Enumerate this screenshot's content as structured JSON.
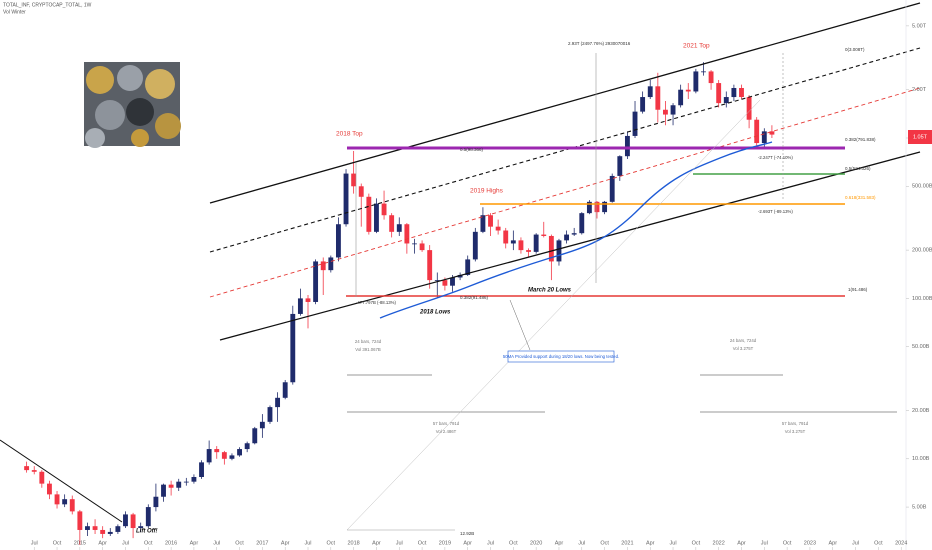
{
  "chart_data": {
    "type": "candlestick",
    "header": [
      "TOTAL_INF, CRYPTOCAP_TOTAL, 1W",
      "Vol Winter"
    ],
    "log_scale": true,
    "up_color": "#1f2b6b",
    "down_color": "#f23645",
    "xlim": [
      "2014-03",
      "2024-02"
    ],
    "ylim": [
      2.7,
      7250
    ],
    "yticks": [
      {
        "value": 5,
        "label": "5.00B"
      },
      {
        "value": 10,
        "label": "10.00B"
      },
      {
        "value": 20,
        "label": "20.00B"
      },
      {
        "value": 50,
        "label": "50.00B"
      },
      {
        "value": 100,
        "label": "100.00B"
      },
      {
        "value": 200,
        "label": "200.00B"
      },
      {
        "value": 500,
        "label": "500.00B"
      },
      {
        "value": 1000,
        "label": "1.00T"
      },
      {
        "value": 2000,
        "label": "2.00T"
      },
      {
        "value": 5000,
        "label": "5.00T"
      }
    ],
    "xticks": [
      {
        "value": "2014-07",
        "label": "Jul"
      },
      {
        "value": "2014-10",
        "label": "Oct"
      },
      {
        "value": "2015-01",
        "label": "2015"
      },
      {
        "value": "2015-04",
        "label": "Apr"
      },
      {
        "value": "2015-07",
        "label": "Jul"
      },
      {
        "value": "2015-10",
        "label": "Oct"
      },
      {
        "value": "2016-01",
        "label": "2016"
      },
      {
        "value": "2016-04",
        "label": "Apr"
      },
      {
        "value": "2016-07",
        "label": "Jul"
      },
      {
        "value": "2016-10",
        "label": "Oct"
      },
      {
        "value": "2017-01",
        "label": "2017"
      },
      {
        "value": "2017-04",
        "label": "Apr"
      },
      {
        "value": "2017-07",
        "label": "Jul"
      },
      {
        "value": "2017-10",
        "label": "Oct"
      },
      {
        "value": "2018-01",
        "label": "2018"
      },
      {
        "value": "2018-04",
        "label": "Apr"
      },
      {
        "value": "2018-07",
        "label": "Jul"
      },
      {
        "value": "2018-10",
        "label": "Oct"
      },
      {
        "value": "2019-01",
        "label": "2019"
      },
      {
        "value": "2019-04",
        "label": "Apr"
      },
      {
        "value": "2019-07",
        "label": "Jul"
      },
      {
        "value": "2019-10",
        "label": "Oct"
      },
      {
        "value": "2020-01",
        "label": "2020"
      },
      {
        "value": "2020-04",
        "label": "Apr"
      },
      {
        "value": "2020-07",
        "label": "Jul"
      },
      {
        "value": "2020-10",
        "label": "Oct"
      },
      {
        "value": "2021-01",
        "label": "2021"
      },
      {
        "value": "2021-04",
        "label": "Apr"
      },
      {
        "value": "2021-07",
        "label": "Jul"
      },
      {
        "value": "2021-10",
        "label": "Oct"
      },
      {
        "value": "2022-01",
        "label": "2022"
      },
      {
        "value": "2022-04",
        "label": "Apr"
      },
      {
        "value": "2022-07",
        "label": "Jul"
      },
      {
        "value": "2022-10",
        "label": "Oct"
      },
      {
        "value": "2023-01",
        "label": "2023"
      },
      {
        "value": "2023-04",
        "label": "Apr"
      },
      {
        "value": "2023-07",
        "label": "Jul"
      },
      {
        "value": "2023-10",
        "label": "Oct"
      },
      {
        "value": "2024-01",
        "label": "2024"
      }
    ],
    "x": [
      "2014-06",
      "2014-07",
      "2014-08",
      "2014-09",
      "2014-10",
      "2014-11",
      "2014-12",
      "2015-01",
      "2015-02",
      "2015-03",
      "2015-04",
      "2015-05",
      "2015-06",
      "2015-07",
      "2015-08",
      "2015-09",
      "2015-10",
      "2015-11",
      "2015-12",
      "2016-01",
      "2016-02",
      "2016-03",
      "2016-04",
      "2016-05",
      "2016-06",
      "2016-07",
      "2016-08",
      "2016-09",
      "2016-10",
      "2016-11",
      "2016-12",
      "2017-01",
      "2017-02",
      "2017-03",
      "2017-04",
      "2017-05",
      "2017-06",
      "2017-07",
      "2017-08",
      "2017-09",
      "2017-10",
      "2017-11",
      "2017-12",
      "2018-01",
      "2018-02",
      "2018-03",
      "2018-04",
      "2018-05",
      "2018-06",
      "2018-07",
      "2018-08",
      "2018-09",
      "2018-10",
      "2018-11",
      "2018-12",
      "2019-01",
      "2019-02",
      "2019-03",
      "2019-04",
      "2019-05",
      "2019-06",
      "2019-07",
      "2019-08",
      "2019-09",
      "2019-10",
      "2019-11",
      "2019-12",
      "2020-01",
      "2020-02",
      "2020-03",
      "2020-04",
      "2020-05",
      "2020-06",
      "2020-07",
      "2020-08",
      "2020-09",
      "2020-10",
      "2020-11",
      "2020-12",
      "2021-01",
      "2021-02",
      "2021-03",
      "2021-04",
      "2021-05",
      "2021-06",
      "2021-07",
      "2021-08",
      "2021-09",
      "2021-10",
      "2021-11",
      "2021-12",
      "2022-01",
      "2022-02",
      "2022-03",
      "2022-04",
      "2022-05",
      "2022-06",
      "2022-07",
      "2022-08"
    ],
    "open": [
      9.0,
      8.5,
      8.3,
      7.0,
      6.0,
      5.2,
      5.6,
      4.7,
      3.6,
      3.8,
      3.6,
      3.4,
      3.5,
      3.8,
      4.5,
      3.7,
      3.8,
      5.0,
      5.8,
      6.9,
      6.6,
      7.2,
      7.2,
      7.7,
      9.5,
      11.5,
      11.0,
      10.0,
      10.5,
      11.5,
      12.5,
      15.5,
      17,
      21,
      24,
      30,
      80,
      100,
      95,
      170,
      150,
      180,
      290,
      600,
      500,
      430,
      260,
      390,
      330,
      260,
      290,
      220,
      220,
      200,
      130,
      130,
      120,
      135,
      140,
      175,
      260,
      330,
      280,
      265,
      220,
      230,
      200,
      195,
      250,
      245,
      170,
      230,
      250,
      255,
      340,
      400,
      345,
      400,
      580,
      770,
      1030,
      1460,
      1800,
      2100,
      1500,
      1400,
      1600,
      2000,
      1950,
      2600,
      2600,
      2200,
      1650,
      1800,
      2050,
      1800,
      1300,
      930,
      1100
    ],
    "high": [
      9.6,
      9.0,
      8.5,
      7.3,
      6.3,
      6.0,
      5.9,
      4.8,
      4.0,
      4.2,
      3.8,
      3.7,
      3.9,
      4.7,
      4.6,
      4.0,
      5.2,
      7.0,
      7.0,
      7.3,
      7.5,
      7.6,
      8.0,
      9.8,
      13.0,
      12.0,
      11.2,
      10.8,
      11.8,
      12.8,
      15.8,
      19.0,
      21.5,
      26,
      31,
      90,
      115,
      105,
      175,
      180,
      185,
      320,
      640,
      830,
      520,
      450,
      420,
      470,
      340,
      320,
      295,
      235,
      230,
      215,
      145,
      135,
      140,
      145,
      185,
      275,
      370,
      340,
      310,
      275,
      265,
      240,
      205,
      255,
      300,
      250,
      235,
      265,
      275,
      345,
      410,
      405,
      405,
      600,
      780,
      1100,
      1700,
      1950,
      2300,
      2550,
      1700,
      1650,
      2150,
      2200,
      2700,
      2970,
      2650,
      2300,
      1950,
      2150,
      2150,
      1850,
      1350,
      1150,
      1200
    ],
    "low": [
      8.2,
      8.0,
      6.6,
      5.6,
      4.9,
      5.0,
      4.5,
      2.9,
      3.3,
      3.4,
      3.2,
      3.3,
      3.4,
      3.7,
      3.2,
      3.5,
      3.7,
      4.7,
      5.4,
      5.9,
      6.3,
      6.8,
      7.0,
      7.5,
      9.2,
      10.0,
      9.2,
      9.8,
      10.3,
      11.0,
      12.3,
      13.5,
      16.5,
      17,
      23.5,
      29,
      78,
      65,
      92,
      105,
      145,
      170,
      280,
      450,
      280,
      250,
      255,
      310,
      240,
      245,
      190,
      190,
      195,
      115,
      100,
      112,
      110,
      130,
      138,
      170,
      255,
      245,
      250,
      205,
      200,
      190,
      180,
      190,
      240,
      130,
      160,
      220,
      245,
      250,
      335,
      315,
      335,
      395,
      540,
      740,
      1000,
      1420,
      1750,
      1250,
      1200,
      1200,
      1550,
      1750,
      1900,
      2450,
      2000,
      1550,
      1550,
      1700,
      1750,
      1150,
      860,
      880,
      1000
    ],
    "close": [
      8.5,
      8.3,
      7.0,
      6.0,
      5.2,
      5.6,
      4.7,
      3.6,
      3.8,
      3.6,
      3.4,
      3.5,
      3.8,
      4.5,
      3.7,
      3.8,
      5.0,
      5.8,
      6.9,
      6.6,
      7.2,
      7.2,
      7.7,
      9.5,
      11.5,
      11.0,
      10.0,
      10.5,
      11.5,
      12.5,
      15.5,
      17,
      21,
      24,
      30,
      80,
      100,
      95,
      170,
      150,
      180,
      290,
      600,
      500,
      430,
      260,
      390,
      330,
      260,
      290,
      220,
      220,
      200,
      130,
      130,
      120,
      135,
      140,
      175,
      260,
      330,
      280,
      265,
      220,
      230,
      200,
      195,
      250,
      245,
      170,
      230,
      250,
      255,
      340,
      400,
      345,
      400,
      580,
      770,
      1030,
      1460,
      1800,
      2100,
      1500,
      1400,
      1600,
      2000,
      1950,
      2600,
      2600,
      2200,
      1650,
      1800,
      2050,
      1800,
      1300,
      930,
      1100,
      1050
    ],
    "last_price_label": "1.05T",
    "annotations": {
      "top_2018": "2018 Top",
      "top_2021": "2021 Top",
      "highs_2019": "2019 Highs",
      "lows_2018": "2018 Lows",
      "lows_march20": "March 20 Lows",
      "lift_off": "Lift Off!",
      "ma_note": "50MA Provided support during 18/20 lows. Now being tested.",
      "measure_top": "2.93T (2497.76%) 2930070016",
      "measure_drop_2018": "-477.797B (-88.13%)",
      "measure_drop_2022": "-2.247T (-74.10%)",
      "measure_drop_2022b": "-2.693T (-89.13%)",
      "fib_0": "0(3.008T)",
      "fib_382": "0.382(791.838)",
      "fib_5": "0.5(524.326)",
      "fib_618": "0.618(331.583)",
      "fib_1": "1(91.486)",
      "fib_left": "0.382(91.486)",
      "fib_mid": "0.5(98.366)",
      "bars_a": "24 bars, 724d",
      "vol_a": "Vol 391.067B",
      "bars_b": "24 bars, 724d",
      "vol_b": "Vol 3.275T",
      "bars_c": "57 bars, 791d",
      "vol_c": "Vol 2.486T",
      "bars_d": "57 bars, 791d",
      "vol_d": "Vol 3.275T",
      "low_label": "12.92B"
    }
  }
}
